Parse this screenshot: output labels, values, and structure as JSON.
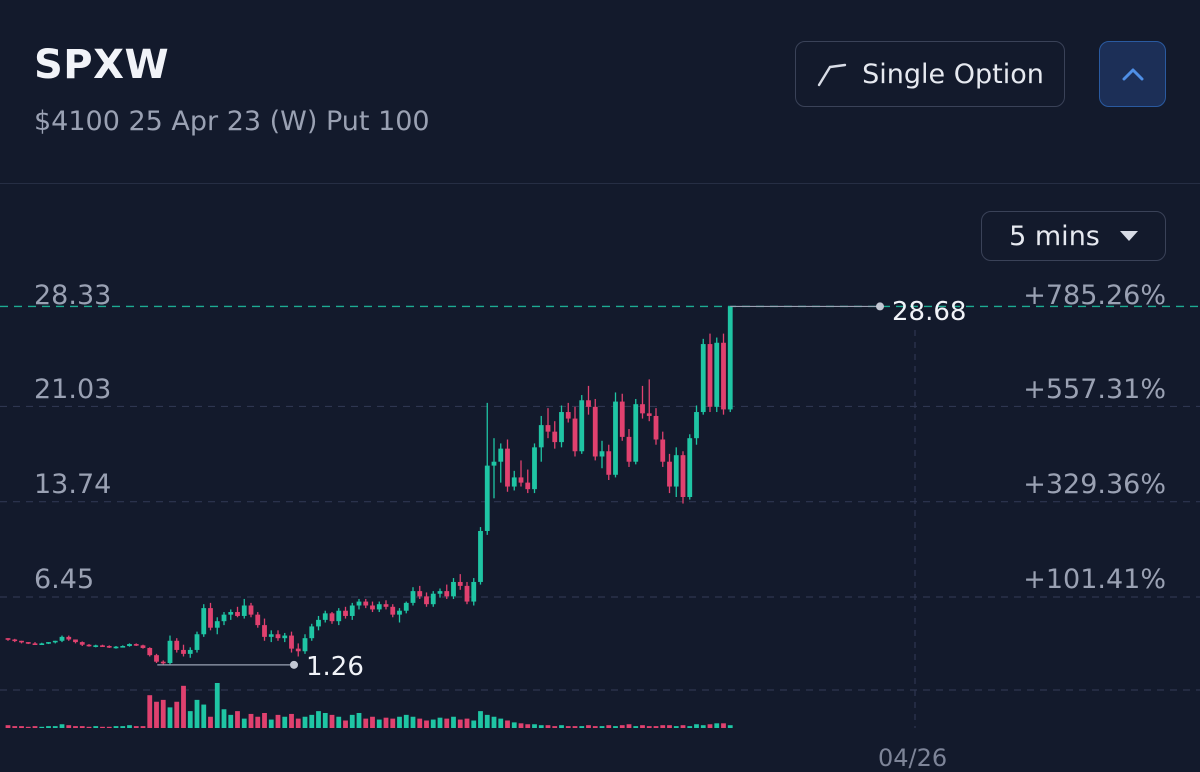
{
  "header": {
    "ticker": "SPXW",
    "contract": "$4100 25 Apr 23 (W) Put 100",
    "mode_button_label": "Single Option",
    "mode_icon": "single-option-line-icon",
    "collapse_icon": "chevron-up-icon"
  },
  "toolbar": {
    "interval_label": "5 mins",
    "interval_icon": "caret-down-icon"
  },
  "chart_data": {
    "type": "candlestick",
    "y_ticks": [
      "28.33",
      "21.03",
      "13.74",
      "6.45"
    ],
    "y_ticks_percent": [
      "+785.26%",
      "+557.31%",
      "+329.36%",
      "+101.41%"
    ],
    "last_price_label": "28.68",
    "low_price_label": "1.26",
    "x_label": "04/26",
    "ylim": [
      0.5,
      30
    ],
    "colors": {
      "up": "#1fc5a4",
      "down": "#e0416f",
      "grid": "#2e3650",
      "last_line": "#1fc5a4"
    },
    "candles": [
      [
        3.3,
        3.3,
        3.1,
        3.2
      ],
      [
        3.2,
        3.25,
        3.0,
        3.1
      ],
      [
        3.1,
        3.1,
        2.9,
        3.0
      ],
      [
        3.0,
        3.0,
        2.85,
        2.9
      ],
      [
        2.9,
        3.0,
        2.8,
        2.85
      ],
      [
        2.85,
        2.95,
        2.8,
        2.9
      ],
      [
        2.9,
        3.0,
        2.85,
        3.0
      ],
      [
        3.0,
        3.1,
        2.9,
        3.1
      ],
      [
        3.1,
        3.5,
        3.0,
        3.4
      ],
      [
        3.4,
        3.5,
        3.1,
        3.2
      ],
      [
        3.2,
        3.2,
        2.9,
        3.0
      ],
      [
        3.0,
        3.05,
        2.7,
        2.8
      ],
      [
        2.8,
        2.85,
        2.65,
        2.7
      ],
      [
        2.7,
        2.8,
        2.6,
        2.75
      ],
      [
        2.75,
        2.8,
        2.65,
        2.7
      ],
      [
        2.7,
        2.75,
        2.55,
        2.6
      ],
      [
        2.6,
        2.7,
        2.5,
        2.65
      ],
      [
        2.65,
        2.75,
        2.6,
        2.7
      ],
      [
        2.7,
        2.9,
        2.65,
        2.85
      ],
      [
        2.85,
        2.9,
        2.7,
        2.75
      ],
      [
        2.75,
        2.8,
        2.5,
        2.55
      ],
      [
        2.55,
        2.6,
        1.9,
        2.0
      ],
      [
        2.0,
        2.1,
        1.4,
        1.5
      ],
      [
        1.5,
        1.6,
        1.26,
        1.4
      ],
      [
        1.4,
        3.5,
        1.3,
        3.1
      ],
      [
        3.1,
        3.3,
        2.2,
        2.4
      ],
      [
        2.4,
        2.8,
        1.9,
        2.1
      ],
      [
        2.1,
        2.6,
        1.8,
        2.4
      ],
      [
        2.4,
        3.8,
        2.2,
        3.6
      ],
      [
        3.6,
        5.9,
        3.4,
        5.6
      ],
      [
        5.6,
        6.0,
        3.9,
        4.1
      ],
      [
        4.1,
        4.9,
        3.6,
        4.6
      ],
      [
        4.6,
        5.3,
        4.3,
        5.1
      ],
      [
        5.1,
        5.5,
        4.7,
        5.3
      ],
      [
        5.3,
        5.7,
        4.9,
        5.0
      ],
      [
        5.0,
        6.3,
        4.8,
        5.8
      ],
      [
        5.8,
        6.0,
        4.9,
        5.1
      ],
      [
        5.1,
        5.3,
        4.1,
        4.3
      ],
      [
        4.3,
        4.8,
        3.1,
        3.4
      ],
      [
        3.4,
        3.9,
        3.0,
        3.6
      ],
      [
        3.6,
        3.9,
        3.1,
        3.3
      ],
      [
        3.3,
        3.7,
        3.0,
        3.5
      ],
      [
        3.5,
        3.8,
        2.2,
        2.5
      ],
      [
        2.5,
        2.9,
        1.9,
        2.3
      ],
      [
        2.3,
        3.6,
        2.1,
        3.3
      ],
      [
        3.3,
        4.4,
        3.1,
        4.2
      ],
      [
        4.2,
        5.0,
        3.9,
        4.7
      ],
      [
        4.7,
        5.4,
        4.5,
        5.2
      ],
      [
        5.2,
        5.3,
        4.4,
        4.6
      ],
      [
        4.6,
        5.6,
        4.3,
        5.4
      ],
      [
        5.4,
        5.7,
        4.8,
        5.0
      ],
      [
        5.0,
        6.0,
        4.7,
        5.8
      ],
      [
        5.8,
        6.3,
        5.5,
        6.1
      ],
      [
        6.1,
        6.3,
        5.6,
        5.8
      ],
      [
        5.8,
        6.1,
        5.3,
        5.5
      ],
      [
        5.5,
        6.1,
        5.3,
        5.9
      ],
      [
        5.9,
        6.2,
        5.5,
        5.7
      ],
      [
        5.7,
        5.9,
        4.9,
        5.1
      ],
      [
        5.1,
        5.6,
        4.5,
        5.4
      ],
      [
        5.4,
        6.1,
        5.2,
        6.0
      ],
      [
        6.0,
        7.2,
        5.8,
        6.9
      ],
      [
        6.9,
        7.3,
        6.3,
        6.5
      ],
      [
        6.5,
        6.8,
        5.7,
        5.9
      ],
      [
        5.9,
        6.9,
        5.7,
        6.7
      ],
      [
        6.7,
        7.1,
        6.4,
        6.9
      ],
      [
        6.9,
        7.4,
        6.3,
        6.5
      ],
      [
        6.5,
        7.9,
        6.3,
        7.6
      ],
      [
        7.6,
        8.2,
        7.0,
        7.3
      ],
      [
        7.3,
        7.6,
        5.9,
        6.1
      ],
      [
        6.1,
        7.9,
        5.8,
        7.6
      ],
      [
        7.6,
        11.8,
        7.4,
        11.5
      ],
      [
        11.5,
        21.3,
        11.2,
        16.5
      ],
      [
        16.5,
        18.6,
        14.0,
        16.8
      ],
      [
        16.8,
        18.2,
        15.2,
        17.8
      ],
      [
        17.8,
        18.5,
        14.5,
        14.9
      ],
      [
        14.9,
        16.1,
        14.6,
        15.6
      ],
      [
        15.6,
        16.9,
        14.9,
        15.2
      ],
      [
        15.2,
        16.2,
        14.4,
        14.7
      ],
      [
        14.7,
        18.2,
        14.4,
        17.9
      ],
      [
        17.9,
        20.3,
        16.8,
        19.6
      ],
      [
        19.6,
        20.9,
        18.6,
        19.1
      ],
      [
        19.1,
        19.9,
        17.8,
        18.3
      ],
      [
        18.3,
        21.1,
        17.9,
        20.6
      ],
      [
        20.6,
        21.3,
        19.8,
        20.1
      ],
      [
        20.1,
        21.0,
        17.2,
        17.6
      ],
      [
        17.6,
        21.9,
        17.4,
        21.5
      ],
      [
        21.5,
        22.6,
        20.4,
        21.0
      ],
      [
        21.0,
        21.6,
        16.9,
        17.2
      ],
      [
        17.2,
        18.4,
        16.3,
        17.6
      ],
      [
        17.6,
        18.1,
        15.4,
        15.8
      ],
      [
        15.8,
        22.1,
        15.6,
        21.4
      ],
      [
        21.4,
        22.0,
        18.4,
        18.7
      ],
      [
        18.7,
        19.3,
        16.4,
        16.8
      ],
      [
        16.8,
        21.6,
        16.6,
        21.2
      ],
      [
        21.2,
        22.6,
        20.1,
        20.5
      ],
      [
        20.5,
        23.1,
        19.9,
        20.3
      ],
      [
        20.3,
        20.9,
        18.1,
        18.5
      ],
      [
        18.5,
        19.1,
        16.4,
        16.8
      ],
      [
        16.8,
        17.4,
        14.4,
        14.9
      ],
      [
        14.9,
        17.9,
        14.1,
        17.3
      ],
      [
        17.3,
        17.6,
        13.6,
        14.1
      ],
      [
        14.1,
        18.9,
        13.9,
        18.6
      ],
      [
        18.6,
        21.1,
        18.1,
        20.6
      ],
      [
        20.6,
        26.2,
        20.4,
        25.8
      ],
      [
        25.8,
        26.6,
        20.6,
        21.0
      ],
      [
        21.0,
        26.3,
        20.6,
        25.9
      ],
      [
        25.9,
        26.6,
        20.4,
        20.8
      ],
      [
        20.8,
        28.68,
        20.6,
        28.68
      ]
    ],
    "volumes": [
      3,
      2,
      2,
      1,
      2,
      1,
      2,
      2,
      4,
      3,
      2,
      2,
      1,
      2,
      1,
      1,
      2,
      2,
      3,
      2,
      2,
      35,
      28,
      30,
      22,
      28,
      45,
      18,
      30,
      25,
      12,
      48,
      20,
      14,
      18,
      10,
      15,
      12,
      16,
      9,
      14,
      12,
      15,
      10,
      12,
      14,
      18,
      16,
      14,
      12,
      8,
      14,
      16,
      10,
      12,
      9,
      11,
      10,
      12,
      14,
      12,
      10,
      8,
      9,
      11,
      10,
      12,
      9,
      10,
      8,
      18,
      14,
      12,
      10,
      8,
      6,
      5,
      4,
      4,
      3,
      3,
      2,
      3,
      2,
      2,
      2,
      3,
      2,
      2,
      3,
      2,
      3,
      4,
      2,
      3,
      2,
      2,
      3,
      3,
      2,
      3,
      2,
      4,
      3,
      4,
      5,
      5,
      3
    ]
  }
}
